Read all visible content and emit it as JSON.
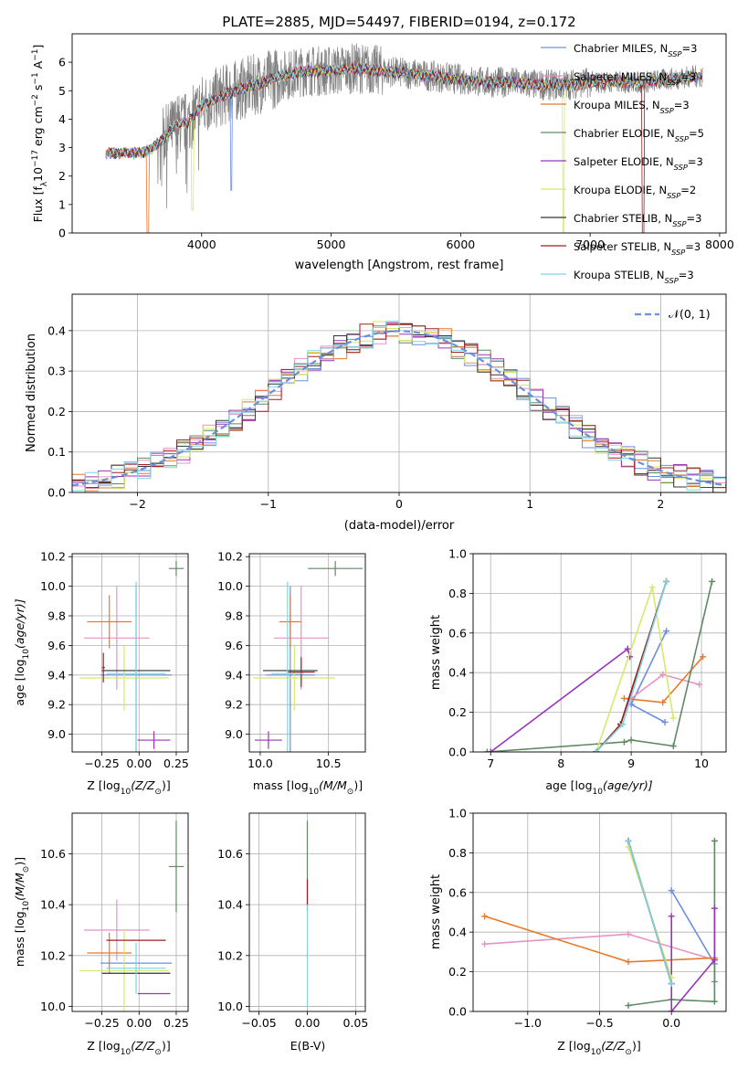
{
  "colors": {
    "Chabrier MILES": "#6b8fe0",
    "Salpeter MILES": "#e891c4",
    "Kroupa MILES": "#e8792a",
    "Chabrier ELODIE": "#5e8a63",
    "Salpeter ELODIE": "#9a35b8",
    "Kroupa ELODIE": "#d8e86a",
    "Chabrier STELIB": "#333333",
    "Salpeter STELIB": "#a41e1e",
    "Kroupa STELIB": "#7fd4e4",
    "data": "#808080",
    "normal": "#6b8fe0"
  },
  "chart_data": [
    {
      "id": "spectrum",
      "type": "line",
      "title": "PLATE=2885, MJD=54497, FIBERID=0194, z=0.172",
      "xlabel": "wavelength [Angstrom, rest frame]",
      "ylabel_main": "Flux [f",
      "ylabel_sub1": "λ",
      "ylabel_mid": "10",
      "ylabel_sup1": "−17",
      "ylabel_rest": " erg cm",
      "ylabel_sup2": "−2",
      "ylabel_rest2": " s",
      "ylabel_sup3": "−1",
      "ylabel_rest3": " A",
      "ylabel_sup4": "−1",
      "ylabel_end": "]",
      "xlim": [
        3000,
        8050
      ],
      "ylim": [
        0,
        7
      ],
      "xticks": [
        4000,
        5000,
        6000,
        7000,
        8000
      ],
      "yticks": [
        0,
        1,
        2,
        3,
        4,
        5,
        6
      ],
      "legend": [
        {
          "name": "Chabrier MILES",
          "nssp": "3"
        },
        {
          "name": "Salpeter MILES",
          "nssp": "3"
        },
        {
          "name": "Kroupa MILES",
          "nssp": "3"
        },
        {
          "name": "Chabrier ELODIE",
          "nssp": "5"
        },
        {
          "name": "Salpeter ELODIE",
          "nssp": "3"
        },
        {
          "name": "Kroupa ELODIE",
          "nssp": "2"
        },
        {
          "name": "Chabrier STELIB",
          "nssp": "3"
        },
        {
          "name": "Salpeter STELIB",
          "nssp": "3"
        },
        {
          "name": "Kroupa STELIB",
          "nssp": "3"
        }
      ],
      "nssp_label": "N",
      "nssp_sub": "SSP",
      "continuum_x": [
        3260,
        3500,
        3600,
        3700,
        3800,
        3900,
        4000,
        4200,
        4400,
        4600,
        4800,
        5000,
        5200,
        5400,
        5600,
        5800,
        6000,
        6200,
        6400,
        6600,
        6800,
        7000,
        7200,
        7400,
        7600,
        7800
      ],
      "continuum_y": [
        2.8,
        2.8,
        2.9,
        3.3,
        3.8,
        3.9,
        4.5,
        4.9,
        5.2,
        5.5,
        5.7,
        5.7,
        5.8,
        5.7,
        5.6,
        5.5,
        5.4,
        5.3,
        5.3,
        5.2,
        5.2,
        5.3,
        5.3,
        5.3,
        5.4,
        5.5
      ],
      "absorption": [
        {
          "x": 3585,
          "depth": 0.0,
          "model": "Kroupa MILES"
        },
        {
          "x": 3930,
          "depth": 0.8,
          "model": "Kroupa ELODIE"
        },
        {
          "x": 4230,
          "depth": 1.5,
          "model": "Chabrier MILES"
        },
        {
          "x": 6795,
          "depth": 0.0,
          "model": "Kroupa ELODIE"
        },
        {
          "x": 7410,
          "depth": 0.0,
          "model": "Salpeter STELIB"
        }
      ]
    },
    {
      "id": "residuals",
      "type": "histogram",
      "xlabel": "(data-model)/error",
      "ylabel": "Normed distribution",
      "xlim": [
        -2.5,
        2.5
      ],
      "ylim": [
        0,
        0.49
      ],
      "xticks": [
        -2,
        -1,
        0,
        1,
        2
      ],
      "yticks": [
        0.0,
        0.1,
        0.2,
        0.3,
        0.4
      ],
      "bin_width": 0.1,
      "legend_label": "𝒩(0, 1)"
    },
    {
      "id": "age-vs-Z",
      "type": "errorbar",
      "xlabel_pre": "Z [log",
      "xlabel_sub": "10",
      "xlabel_post": "(Z/Z",
      "xlabel_sub2": "⊙",
      "xlabel_end": ")]",
      "ylabel_pre": "age  [log",
      "ylabel_sub": "10",
      "ylabel_post": "(age/yr)]",
      "xlim": [
        -0.45,
        0.33
      ],
      "ylim": [
        8.88,
        10.22
      ],
      "xticks": [
        -0.25,
        0.0,
        0.25
      ],
      "yticks": [
        9.0,
        9.2,
        9.4,
        9.6,
        9.8,
        10.0,
        10.2
      ],
      "points": [
        {
          "model": "Chabrier MILES",
          "x": -0.02,
          "xerr": 0.24,
          "y": 9.4,
          "yerr": 0.6
        },
        {
          "model": "Salpeter MILES",
          "x": -0.15,
          "xerr": 0.22,
          "y": 9.65,
          "yerr": 0.35
        },
        {
          "model": "Kroupa MILES",
          "x": -0.2,
          "xerr": 0.15,
          "y": 9.76,
          "yerr": 0.18
        },
        {
          "model": "Chabrier ELODIE",
          "x": 0.25,
          "xerr": 0.05,
          "y": 10.12,
          "yerr": 0.05
        },
        {
          "model": "Salpeter ELODIE",
          "x": 0.1,
          "xerr": 0.11,
          "y": 8.96,
          "yerr": 0.06
        },
        {
          "model": "Kroupa ELODIE",
          "x": -0.1,
          "xerr": 0.3,
          "y": 9.38,
          "yerr": 0.22
        },
        {
          "model": "Chabrier STELIB",
          "x": -0.02,
          "xerr": 0.23,
          "y": 9.43,
          "yerr": 0.0
        },
        {
          "model": "Salpeter STELIB",
          "x": -0.24,
          "xerr": 0.01,
          "y": 9.45,
          "yerr": 0.1
        },
        {
          "model": "Kroupa STELIB",
          "x": -0.02,
          "xerr": 0.2,
          "y": 9.41,
          "yerr": 0.62
        }
      ]
    },
    {
      "id": "age-vs-mass",
      "type": "errorbar",
      "xlabel_pre": "mass [log",
      "xlabel_sub": "10",
      "xlabel_post": "(M/M",
      "xlabel_sub2": "⊙",
      "xlabel_end": ")]",
      "xlim": [
        9.92,
        10.77
      ],
      "ylim": [
        8.88,
        10.22
      ],
      "xticks": [
        10.0,
        10.5
      ],
      "yticks": [
        9.0,
        9.2,
        9.4,
        9.6,
        9.8,
        10.0,
        10.2
      ],
      "points": [
        {
          "model": "Chabrier MILES",
          "x": 10.22,
          "xerr": 0.18,
          "y": 9.4,
          "yerr": 0.6
        },
        {
          "model": "Salpeter MILES",
          "x": 10.3,
          "xerr": 0.2,
          "y": 9.65,
          "yerr": 0.35
        },
        {
          "model": "Kroupa MILES",
          "x": 10.22,
          "xerr": 0.08,
          "y": 9.76,
          "yerr": 0.18
        },
        {
          "model": "Chabrier ELODIE",
          "x": 10.55,
          "xerr": 0.2,
          "y": 10.12,
          "yerr": 0.05
        },
        {
          "model": "Salpeter ELODIE",
          "x": 10.06,
          "xerr": 0.1,
          "y": 8.96,
          "yerr": 0.06
        },
        {
          "model": "Kroupa ELODIE",
          "x": 10.25,
          "xerr": 0.3,
          "y": 9.38,
          "yerr": 0.22
        },
        {
          "model": "Chabrier STELIB",
          "x": 10.22,
          "xerr": 0.2,
          "y": 9.43,
          "yerr": 0.0
        },
        {
          "model": "Salpeter STELIB",
          "x": 10.3,
          "xerr": 0.1,
          "y": 9.42,
          "yerr": 0.1
        },
        {
          "model": "Kroupa STELIB",
          "x": 10.2,
          "xerr": 0.12,
          "y": 9.41,
          "yerr": 0.62
        }
      ]
    },
    {
      "id": "weight-vs-age",
      "type": "line",
      "xlabel_pre": "age  [log",
      "xlabel_sub": "10",
      "xlabel_post": "(age/yr)]",
      "ylabel": "mass weight",
      "xlim": [
        6.75,
        10.35
      ],
      "ylim": [
        0,
        1.0
      ],
      "xticks": [
        7,
        8,
        9,
        10
      ],
      "yticks": [
        0.0,
        0.2,
        0.4,
        0.6,
        0.8,
        1.0
      ],
      "series": [
        {
          "model": "Chabrier MILES",
          "x": [
            9.48,
            9.0,
            9.5
          ],
          "y": [
            0.15,
            0.24,
            0.61
          ]
        },
        {
          "model": "Salpeter MILES",
          "x": [
            9.0,
            9.45,
            9.97
          ],
          "y": [
            0.27,
            0.39,
            0.34
          ]
        },
        {
          "model": "Kroupa MILES",
          "x": [
            8.9,
            9.45,
            10.02
          ],
          "y": [
            0.27,
            0.25,
            0.48
          ]
        },
        {
          "model": "Chabrier ELODIE",
          "x": [
            6.95,
            8.9,
            9.0,
            9.6,
            10.15
          ],
          "y": [
            0.0,
            0.05,
            0.06,
            0.03,
            0.86
          ]
        },
        {
          "model": "Salpeter ELODIE",
          "x": [
            7.0,
            8.95,
            8.98
          ],
          "y": [
            0.0,
            0.52,
            0.48
          ]
        },
        {
          "model": "Kroupa ELODIE",
          "x": [
            8.5,
            9.3,
            9.6
          ],
          "y": [
            0.0,
            0.83,
            0.17
          ]
        },
        {
          "model": "Chabrier STELIB",
          "x": [
            8.5,
            8.85,
            9.5
          ],
          "y": [
            0.0,
            0.14,
            0.86
          ]
        },
        {
          "model": "Salpeter STELIB",
          "x": [
            8.5,
            8.85,
            9.5
          ],
          "y": [
            0.0,
            0.14,
            0.86
          ]
        },
        {
          "model": "Kroupa STELIB",
          "x": [
            8.5,
            8.88,
            9.5
          ],
          "y": [
            0.0,
            0.14,
            0.86
          ]
        }
      ]
    },
    {
      "id": "mass-vs-Z",
      "type": "errorbar",
      "xlabel_pre": "Z [log",
      "xlabel_sub": "10",
      "xlabel_post": "(Z/Z",
      "xlabel_sub2": "⊙",
      "xlabel_end": ")]",
      "ylabel_pre": "mass [log",
      "ylabel_sub": "10",
      "ylabel_post": "(M/M",
      "ylabel_sub2": "⊙",
      "ylabel_end": ")]",
      "xlim": [
        -0.45,
        0.33
      ],
      "ylim": [
        9.98,
        10.76
      ],
      "xticks": [
        -0.25,
        0.0,
        0.25
      ],
      "yticks": [
        10.0,
        10.2,
        10.4,
        10.6
      ],
      "points": [
        {
          "model": "Chabrier MILES",
          "x": -0.02,
          "xerr": 0.24,
          "y": 10.17,
          "yerr": 0.0
        },
        {
          "model": "Salpeter MILES",
          "x": -0.15,
          "xerr": 0.22,
          "y": 10.3,
          "yerr": 0.12
        },
        {
          "model": "Kroupa MILES",
          "x": -0.2,
          "xerr": 0.15,
          "y": 10.21,
          "yerr": 0.08
        },
        {
          "model": "Chabrier ELODIE",
          "x": 0.25,
          "xerr": 0.05,
          "y": 10.55,
          "yerr": 0.18
        },
        {
          "model": "Salpeter ELODIE",
          "x": 0.1,
          "xerr": 0.11,
          "y": 10.05,
          "yerr": 0.0
        },
        {
          "model": "Kroupa ELODIE",
          "x": -0.1,
          "xerr": 0.3,
          "y": 10.14,
          "yerr": 0.16
        },
        {
          "model": "Chabrier STELIB",
          "x": -0.02,
          "xerr": 0.23,
          "y": 10.13,
          "yerr": 0.0
        },
        {
          "model": "Salpeter STELIB",
          "x": -0.02,
          "xerr": 0.2,
          "y": 10.26,
          "yerr": 0.0
        },
        {
          "model": "Kroupa STELIB",
          "x": -0.02,
          "xerr": 0.2,
          "y": 10.15,
          "yerr": 0.1
        }
      ]
    },
    {
      "id": "mass-vs-ebv",
      "type": "errorbar",
      "xlabel": "E(B-V)",
      "xlim": [
        -0.06,
        0.06
      ],
      "ylim": [
        9.98,
        10.76
      ],
      "xticks": [
        -0.05,
        0.0,
        0.05
      ],
      "xtick_labels": [
        "−0.05",
        "0.00",
        "0.05"
      ],
      "yticks": [
        10.0,
        10.2,
        10.4,
        10.6
      ],
      "points": [
        {
          "model": "Chabrier ELODIE",
          "x": 0.0,
          "xerr": 0.0,
          "y": 10.55,
          "yerr": 0.18
        },
        {
          "model": "Salpeter STELIB",
          "x": 0.0,
          "xerr": 0.0,
          "y": 10.45,
          "yerr": 0.05
        },
        {
          "model": "Kroupa STELIB",
          "x": 0.0,
          "xerr": 0.0,
          "y": 10.2,
          "yerr": 0.2
        }
      ]
    },
    {
      "id": "weight-vs-Z",
      "type": "line",
      "xlabel_pre": "Z [log",
      "xlabel_sub": "10",
      "xlabel_post": "(Z/Z",
      "xlabel_sub2": "⊙",
      "xlabel_end": ")]",
      "ylabel": "mass weight",
      "xlim": [
        -1.38,
        0.38
      ],
      "ylim": [
        0,
        1.0
      ],
      "xticks": [
        -1.0,
        -0.5,
        0.0
      ],
      "xtick_labels": [
        "−1.0",
        "−0.5",
        "0.0"
      ],
      "yticks": [
        0.0,
        0.2,
        0.4,
        0.6,
        0.8,
        1.0
      ],
      "series": [
        {
          "model": "Chabrier MILES",
          "x": [
            0.0,
            0.3,
            0.3
          ],
          "y": [
            0.61,
            0.24,
            0.15
          ]
        },
        {
          "model": "Salpeter MILES",
          "x": [
            -1.3,
            -0.3,
            0.3
          ],
          "y": [
            0.34,
            0.39,
            0.26
          ]
        },
        {
          "model": "Kroupa MILES",
          "x": [
            -1.3,
            -0.3,
            0.3
          ],
          "y": [
            0.48,
            0.25,
            0.27
          ]
        },
        {
          "model": "Chabrier ELODIE",
          "x": [
            -0.3,
            0.0,
            0.3,
            0.3
          ],
          "y": [
            0.03,
            0.06,
            0.05,
            0.86
          ]
        },
        {
          "model": "Salpeter ELODIE",
          "x": [
            0.0,
            0.0,
            0.3,
            0.3
          ],
          "y": [
            0.48,
            0.0,
            0.26,
            0.52
          ]
        },
        {
          "model": "Kroupa ELODIE",
          "x": [
            -0.3,
            0.0
          ],
          "y": [
            0.83,
            0.17
          ]
        },
        {
          "model": "Chabrier STELIB",
          "x": [
            -0.3,
            0.0
          ],
          "y": [
            0.86,
            0.14
          ]
        },
        {
          "model": "Salpeter STELIB",
          "x": [
            -0.3,
            0.0
          ],
          "y": [
            0.86,
            0.14
          ]
        },
        {
          "model": "Kroupa STELIB",
          "x": [
            -0.3,
            0.0
          ],
          "y": [
            0.86,
            0.14
          ]
        }
      ]
    }
  ]
}
